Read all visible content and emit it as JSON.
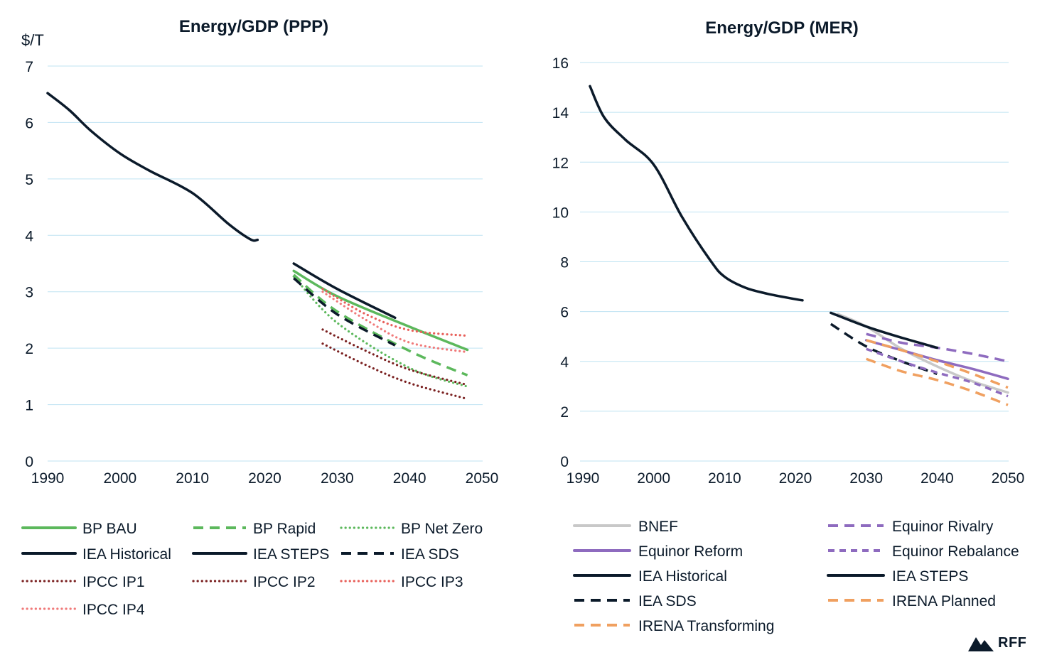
{
  "chart_data": [
    {
      "type": "line",
      "title": "Energy/GDP (PPP)",
      "ylabel": "$/T",
      "xlim": [
        1990,
        2050
      ],
      "ylim": [
        0,
        7
      ],
      "xticks": [
        "1990",
        "2000",
        "2010",
        "2020",
        "2030",
        "2040",
        "2050"
      ],
      "yticks": [
        "0",
        "1",
        "2",
        "3",
        "4",
        "5",
        "6",
        "7"
      ],
      "grid": true,
      "legend_position": "bottom",
      "series": [
        {
          "name": "BP BAU",
          "color": "#5cb85c",
          "style": "solid",
          "x": [
            2024,
            2030,
            2040,
            2048
          ],
          "y": [
            3.37,
            2.92,
            2.38,
            1.97
          ]
        },
        {
          "name": "BP Rapid",
          "color": "#5cb85c",
          "style": "dashed",
          "x": [
            2024,
            2030,
            2040,
            2048
          ],
          "y": [
            3.3,
            2.65,
            1.95,
            1.52
          ]
        },
        {
          "name": "BP Net Zero",
          "color": "#5cb85c",
          "style": "dotted",
          "x": [
            2024,
            2030,
            2040,
            2048
          ],
          "y": [
            3.27,
            2.45,
            1.65,
            1.32
          ]
        },
        {
          "name": "IEA Historical",
          "color": "#0b1a2a",
          "style": "solid",
          "x": [
            1990,
            1993,
            1996,
            2000,
            2004,
            2010,
            2015,
            2018,
            2019
          ],
          "y": [
            6.52,
            6.22,
            5.85,
            5.45,
            5.15,
            4.75,
            4.2,
            3.93,
            3.92
          ]
        },
        {
          "name": "IEA STEPS",
          "color": "#0b1a2a",
          "style": "solid",
          "x": [
            2024,
            2030,
            2038
          ],
          "y": [
            3.5,
            3.05,
            2.54
          ]
        },
        {
          "name": "IEA SDS",
          "color": "#0b1a2a",
          "style": "dashed",
          "x": [
            2024,
            2030,
            2038
          ],
          "y": [
            3.24,
            2.6,
            2.05
          ]
        },
        {
          "name": "IPCC IP1",
          "color": "#7a2020",
          "style": "dotted",
          "x": [
            2028,
            2034,
            2040,
            2048
          ],
          "y": [
            2.08,
            1.7,
            1.38,
            1.1
          ]
        },
        {
          "name": "IPCC IP2",
          "color": "#7a2020",
          "style": "dotted",
          "x": [
            2028,
            2034,
            2040,
            2048
          ],
          "y": [
            2.33,
            1.95,
            1.62,
            1.35
          ]
        },
        {
          "name": "IPCC IP3",
          "color": "#e8605a",
          "style": "dotted",
          "x": [
            2028,
            2034,
            2040,
            2048
          ],
          "y": [
            3.05,
            2.6,
            2.32,
            2.22
          ]
        },
        {
          "name": "IPCC IP4",
          "color": "#f07a7a",
          "style": "dotted",
          "x": [
            2028,
            2034,
            2040,
            2048
          ],
          "y": [
            3.0,
            2.5,
            2.1,
            1.93
          ]
        }
      ]
    },
    {
      "type": "line",
      "title": "Energy/GDP (MER)",
      "ylabel": "",
      "xlim": [
        1990,
        2050
      ],
      "ylim": [
        0,
        16
      ],
      "xticks": [
        "1990",
        "2000",
        "2010",
        "2020",
        "2030",
        "2040",
        "2050"
      ],
      "yticks": [
        "0",
        "2",
        "4",
        "6",
        "8",
        "10",
        "12",
        "14",
        "16"
      ],
      "grid": true,
      "legend_position": "bottom",
      "series": [
        {
          "name": "BNEF",
          "color": "#c8c8c8",
          "style": "solid",
          "x": [
            2026,
            2030,
            2035,
            2040,
            2045,
            2050
          ],
          "y": [
            5.9,
            5.4,
            4.5,
            3.8,
            3.2,
            2.75
          ]
        },
        {
          "name": "Equinor Reform",
          "color": "#8e6bbf",
          "style": "solid",
          "x": [
            2030,
            2035,
            2040,
            2045,
            2050
          ],
          "y": [
            4.85,
            4.45,
            4.05,
            3.7,
            3.3
          ]
        },
        {
          "name": "IEA Historical",
          "color": "#0b1a2a",
          "style": "solid",
          "x": [
            1991,
            1993,
            1996,
            2000,
            2004,
            2008,
            2010,
            2013,
            2016,
            2019,
            2021
          ],
          "y": [
            15.05,
            13.8,
            12.9,
            11.9,
            9.8,
            8.05,
            7.4,
            6.95,
            6.72,
            6.55,
            6.45
          ]
        },
        {
          "name": "IEA SDS",
          "color": "#0b1a2a",
          "style": "dashed",
          "x": [
            2025,
            2030,
            2035,
            2040
          ],
          "y": [
            5.5,
            4.6,
            4.0,
            3.5
          ]
        },
        {
          "name": "IRENA Transforming",
          "color": "#f0a060",
          "style": "dashed",
          "x": [
            2030,
            2035,
            2040,
            2045,
            2050
          ],
          "y": [
            4.1,
            3.6,
            3.25,
            2.8,
            2.25
          ]
        },
        {
          "name": "Equinor Rivalry",
          "color": "#8e6bbf",
          "style": "dashed",
          "x": [
            2030,
            2035,
            2040,
            2045,
            2050
          ],
          "y": [
            5.1,
            4.75,
            4.55,
            4.3,
            4.0
          ]
        },
        {
          "name": "Equinor Rebalance",
          "color": "#8e6bbf",
          "style": "dashed-short",
          "x": [
            2030,
            2035,
            2040,
            2045,
            2050
          ],
          "y": [
            4.5,
            4.0,
            3.55,
            3.15,
            2.6
          ]
        },
        {
          "name": "IEA STEPS",
          "color": "#0b1a2a",
          "style": "solid",
          "x": [
            2025,
            2030,
            2035,
            2040
          ],
          "y": [
            5.95,
            5.4,
            4.95,
            4.55
          ]
        },
        {
          "name": "IRENA Planned",
          "color": "#f0a060",
          "style": "dashed",
          "x": [
            2030,
            2035,
            2040,
            2045,
            2050
          ],
          "y": [
            4.85,
            4.45,
            4.0,
            3.5,
            2.95
          ]
        }
      ]
    }
  ],
  "logo": {
    "text": "RFF"
  }
}
